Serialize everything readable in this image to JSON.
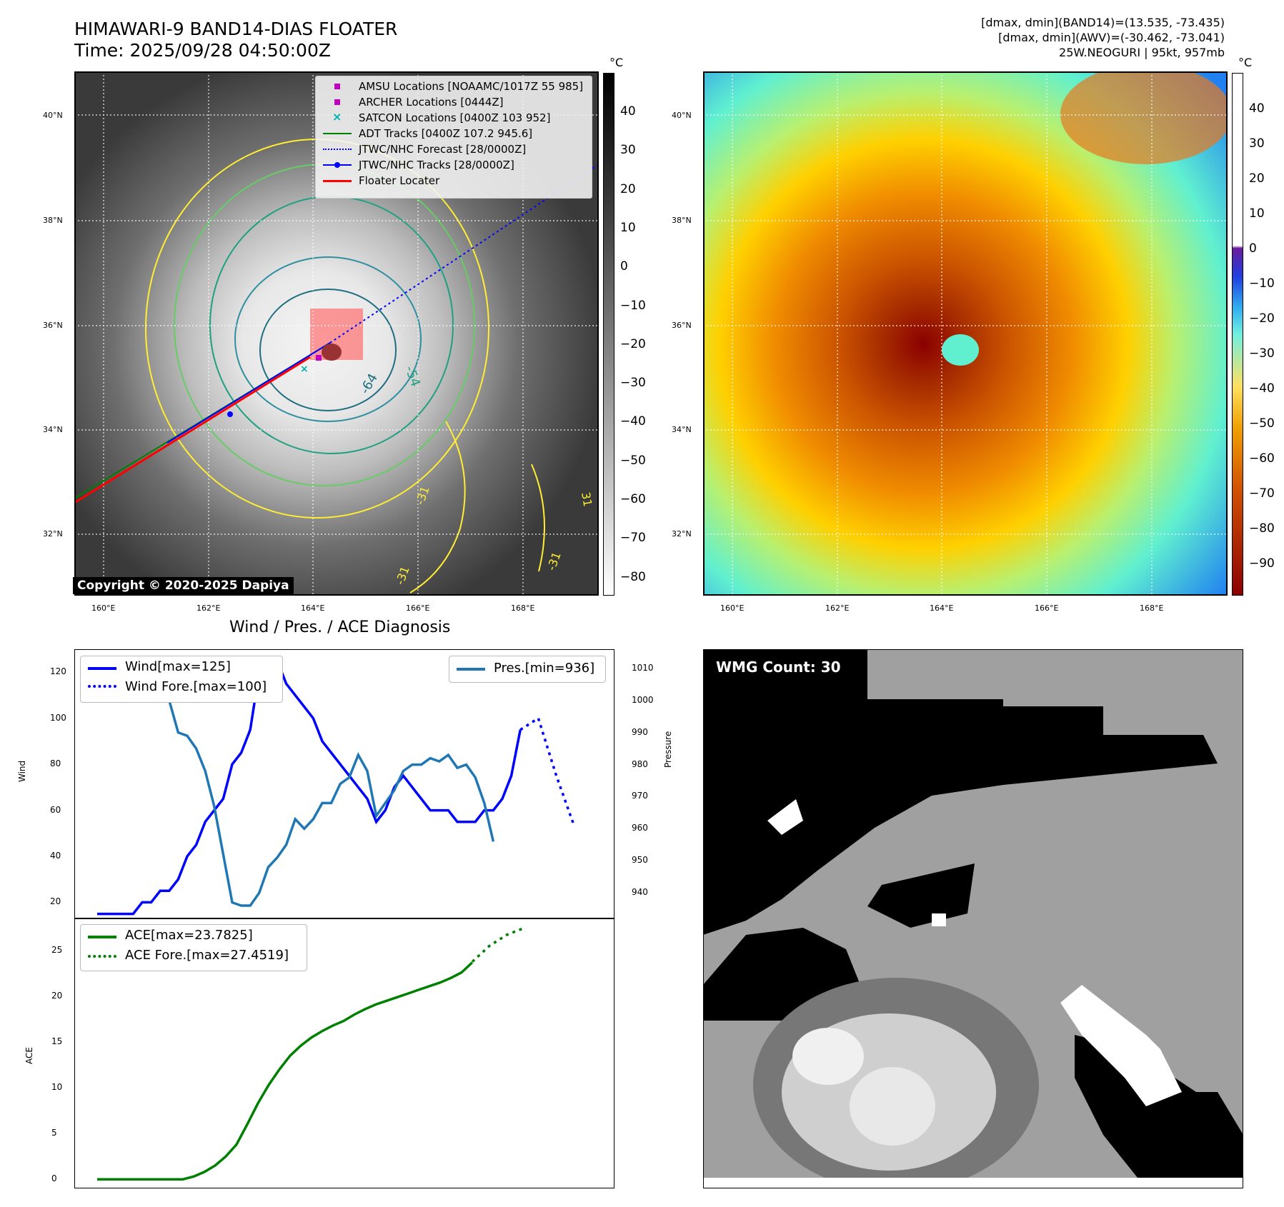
{
  "header": {
    "title": "HIMAWARI-9 BAND14-DIAS FLOATER",
    "time": "Time: 2025/09/28 04:50:00Z",
    "info_line1": "[dmax, dmin](BAND14)=(13.535, -73.435)",
    "info_line2": "[dmax, dmin](AWV)=(-30.462, -73.041)",
    "info_line3": "25W.NEOGURI | 95kt, 957mb"
  },
  "map": {
    "lat_labels": [
      "40°N",
      "38°N",
      "36°N",
      "34°N",
      "32°N"
    ],
    "lon_labels": [
      "160°E",
      "162°E",
      "164°E",
      "166°E",
      "168°E"
    ],
    "copyright": "Copyright © 2020-2025 Dapiya",
    "unit": "°C",
    "colorbar_left_ticks": [
      "40",
      "30",
      "20",
      "10",
      "0",
      "−10",
      "−20",
      "−30",
      "−40",
      "−50",
      "−60",
      "−70",
      "−80"
    ],
    "colorbar_right_ticks": [
      "40",
      "30",
      "20",
      "10",
      "0",
      "−10",
      "−20",
      "−30",
      "−40",
      "−50",
      "−60",
      "−70",
      "−80",
      "−90"
    ],
    "contour_labels": [
      "-64",
      "-54",
      "-31",
      "-31",
      "-31",
      "31"
    ],
    "legend": [
      {
        "label": "AMSU Locations [NOAAMC/1017Z 55 985]",
        "color": "#c000c0",
        "kind": "square"
      },
      {
        "label": "ARCHER Locations [0444Z]",
        "color": "#c000c0",
        "kind": "square"
      },
      {
        "label": "SATCON Locations [0400Z 103 952]",
        "color": "#00b0b0",
        "kind": "x"
      },
      {
        "label": "ADT Tracks [0400Z 107.2 945.6]",
        "color": "#008000",
        "kind": "line"
      },
      {
        "label": "JTWC/NHC Forecast [28/0000Z]",
        "color": "#0000ff",
        "kind": "dotted"
      },
      {
        "label": "JTWC/NHC Tracks [28/0000Z]",
        "color": "#0000ff",
        "kind": "line-dot"
      },
      {
        "label": "Floater Locater",
        "color": "#ff0000",
        "kind": "line"
      }
    ]
  },
  "diagnosis": {
    "title": "Wind / Pres. / ACE Diagnosis",
    "wind_ylabel": "Wind",
    "pres_ylabel": "Pressure",
    "ace_ylabel": "ACE",
    "wind_ticks": [
      "120",
      "100",
      "80",
      "60",
      "40",
      "20"
    ],
    "pres_ticks": [
      "1010",
      "1000",
      "990",
      "980",
      "970",
      "960",
      "950",
      "940"
    ],
    "ace_ticks": [
      "25",
      "20",
      "15",
      "10",
      "5",
      "0"
    ],
    "legend_wind": "Wind[max=125]",
    "legend_wind_fore": "Wind Fore.[max=100]",
    "legend_pres": "Pres.[min=936]",
    "legend_ace": "ACE[max=23.7825]",
    "legend_ace_fore": "ACE Fore.[max=27.4519]"
  },
  "wmg": {
    "label": "WMG Count: 30"
  },
  "chart_data": [
    {
      "type": "line",
      "title": "",
      "ylabel": "Wind",
      "ylim": [
        13,
        130
      ],
      "series": [
        {
          "name": "Wind[max=125]",
          "values": [
            15,
            15,
            15,
            15,
            15,
            20,
            20,
            25,
            25,
            30,
            40,
            45,
            55,
            60,
            65,
            80,
            85,
            95,
            120,
            125,
            125,
            115,
            110,
            105,
            100,
            90,
            85,
            80,
            75,
            70,
            65,
            55,
            60,
            70,
            75,
            70,
            65,
            60,
            60,
            60,
            55,
            55,
            55,
            60,
            60,
            65,
            75,
            95
          ]
        },
        {
          "name": "Wind Fore.[max=100]",
          "values": [
            95,
            100,
            75,
            53
          ]
        },
        {
          "name": "Pres.[min=936]",
          "values": [
            1004,
            1007,
            1007,
            1007,
            1006,
            1006,
            1006,
            1004,
            1000,
            990,
            989,
            985,
            978,
            967,
            952,
            937,
            936,
            936,
            940,
            948,
            951,
            955,
            963,
            960,
            963,
            968,
            968,
            974,
            976,
            983,
            978,
            964,
            968,
            972,
            978,
            980,
            980,
            982,
            981,
            983,
            979,
            980,
            976,
            968,
            956
          ]
        }
      ]
    },
    {
      "type": "line",
      "title": "",
      "ylabel": "ACE",
      "ylim": [
        -1,
        28.5
      ],
      "series": [
        {
          "name": "ACE[max=23.7825]",
          "values": [
            0,
            0,
            0,
            0,
            0,
            0,
            0,
            0,
            0,
            0.3,
            0.8,
            1.5,
            2.5,
            3.8,
            6,
            8.3,
            10.3,
            12,
            13.5,
            14.6,
            15.5,
            16.2,
            16.8,
            17.3,
            18,
            18.6,
            19.1,
            19.5,
            19.9,
            20.3,
            20.7,
            21.1,
            21.5,
            22,
            22.6,
            23.7
          ]
        },
        {
          "name": "ACE Fore.[max=27.4519]",
          "values": [
            23.78,
            25.5,
            26.7,
            27.45
          ]
        }
      ]
    }
  ]
}
